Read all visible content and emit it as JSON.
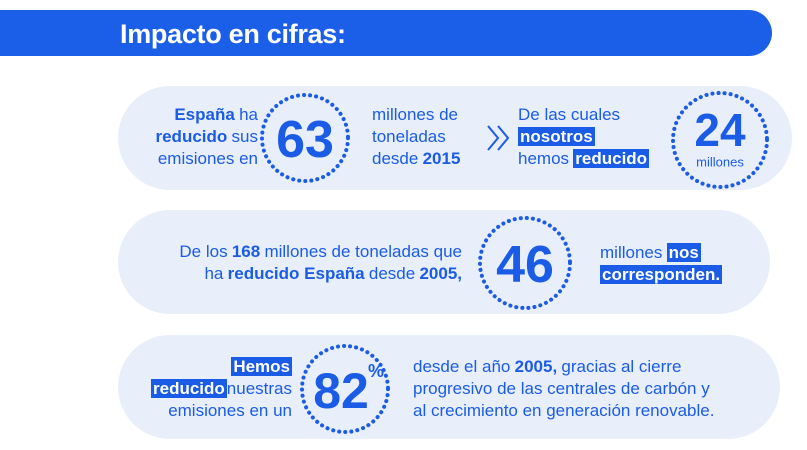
{
  "header": {
    "title": "Impacto en cifras:"
  },
  "rows": [
    {
      "text_left": [
        [
          "España",
          "ha"
        ],
        [
          "reducido",
          "sus"
        ],
        [
          "emisiones en"
        ]
      ],
      "figure": 63,
      "text_mid": [
        [
          "millones de"
        ],
        [
          "toneladas"
        ],
        [
          "desde",
          "2015"
        ]
      ],
      "text_right": [
        [
          "De las cuales"
        ],
        [
          "nosotros"
        ],
        [
          "hemos",
          "reducido"
        ]
      ],
      "figure_2": 24,
      "figure_2_caption": "millones"
    },
    {
      "text_left": [
        [
          "De los",
          "168",
          "millones de toneladas que"
        ],
        [
          "ha",
          "reducido España",
          "desde",
          "2005,"
        ]
      ],
      "figure": 46,
      "text_right": [
        [
          "millones",
          "nos"
        ],
        [
          "corresponden."
        ]
      ]
    },
    {
      "text_left": [
        [
          "Hemos"
        ],
        [
          "reducido",
          "nuestras"
        ],
        [
          "emisiones en un"
        ]
      ],
      "figure": 82,
      "figure_suffix": "%",
      "text_right": [
        [
          "desde el año",
          "2005,",
          "gracias al cierre"
        ],
        [
          "progresivo de las centrales de carbón y"
        ],
        [
          "al crecimiento en generación renovable."
        ]
      ]
    }
  ]
}
